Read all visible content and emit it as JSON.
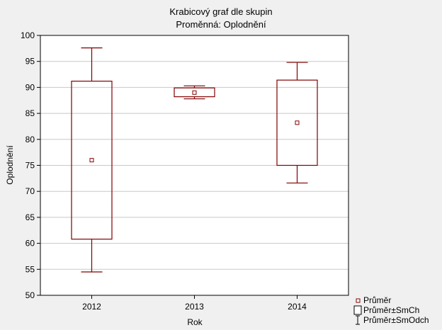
{
  "chart_data": {
    "type": "box",
    "title": "Krabicový graf dle skupin",
    "subtitle": "Proměnná: Oplodnění",
    "xlabel": "Rok",
    "ylabel": "Oplodnění",
    "ylim": [
      50,
      100
    ],
    "yticks": [
      50,
      55,
      60,
      65,
      70,
      75,
      80,
      85,
      90,
      95,
      100
    ],
    "categories": [
      "2012",
      "2013",
      "2014"
    ],
    "boxes": [
      {
        "category": "2012",
        "mean": 76.0,
        "se_low": 60.8,
        "se_high": 91.2,
        "sd_low": 54.5,
        "sd_high": 97.6
      },
      {
        "category": "2013",
        "mean": 89.0,
        "se_low": 88.2,
        "se_high": 89.9,
        "sd_low": 87.8,
        "sd_high": 90.3
      },
      {
        "category": "2014",
        "mean": 83.2,
        "se_low": 75.0,
        "se_high": 91.4,
        "sd_low": 71.6,
        "sd_high": 94.8
      }
    ],
    "legend": [
      {
        "label": "Průměr",
        "symbol": "point-icon"
      },
      {
        "label": "Průměr±SmCh",
        "symbol": "box-icon"
      },
      {
        "label": "Průměr±SmOdch",
        "symbol": "whisker-icon"
      }
    ],
    "legend_position": "bottom-right",
    "grid": true,
    "colors": {
      "series": "#800000",
      "grid": "#c8c8c8",
      "plot_bg": "#ffffff",
      "page_bg": "#f0f0f0"
    }
  }
}
